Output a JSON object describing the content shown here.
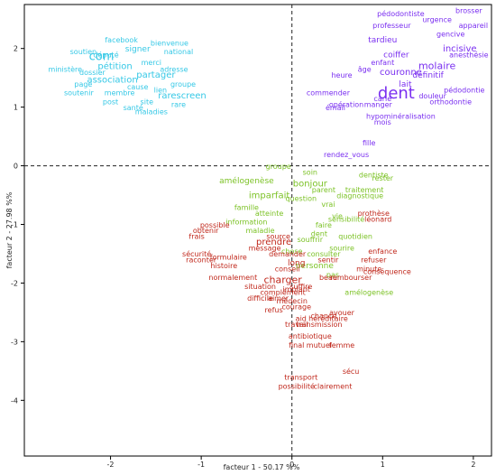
{
  "chart_data": {
    "type": "scatter",
    "title": "",
    "xlabel": "facteur 1 - 50.17 %%",
    "ylabel": "facteur 2 - 27.98 %%",
    "xlim": [
      -2.95,
      2.2
    ],
    "ylim": [
      -4.95,
      2.75
    ],
    "xticks": [
      -2,
      -1,
      0,
      1,
      2
    ],
    "yticks": [
      2,
      1,
      0,
      -1,
      -2,
      -3,
      -4
    ],
    "grid": false,
    "reference_lines": [
      0,
      0
    ],
    "colors": {
      "cyan": "#35c8e6",
      "purple": "#7a2ff0",
      "green": "#7cc226",
      "red": "#c0281c"
    },
    "clusters": [
      {
        "color": "cyan",
        "words": [
          {
            "t": "com",
            "x": -2.1,
            "y": 1.8,
            "s": 13
          },
          {
            "t": "pétition",
            "x": -1.95,
            "y": 1.65,
            "s": 10
          },
          {
            "t": "association",
            "x": -1.98,
            "y": 1.42,
            "s": 10
          },
          {
            "t": "partager",
            "x": -1.5,
            "y": 1.5,
            "s": 10
          },
          {
            "t": "rarescreen",
            "x": -1.21,
            "y": 1.15,
            "s": 10
          },
          {
            "t": "signer",
            "x": -1.7,
            "y": 1.95,
            "s": 9
          },
          {
            "t": "facebook",
            "x": -1.88,
            "y": 2.1,
            "s": 8
          },
          {
            "t": "national",
            "x": -1.25,
            "y": 1.9,
            "s": 8
          },
          {
            "t": "merci",
            "x": -1.55,
            "y": 1.72,
            "s": 8
          },
          {
            "t": "dossier",
            "x": -2.2,
            "y": 1.55,
            "s": 8
          },
          {
            "t": "député",
            "x": -2.05,
            "y": 1.85,
            "s": 8
          },
          {
            "t": "cause",
            "x": -1.7,
            "y": 1.3,
            "s": 8
          },
          {
            "t": "bienvenue",
            "x": -1.35,
            "y": 2.05,
            "s": 8
          },
          {
            "t": "membre",
            "x": -1.9,
            "y": 1.2,
            "s": 8
          },
          {
            "t": "soutien",
            "x": -2.3,
            "y": 1.9,
            "s": 8
          },
          {
            "t": "ministère",
            "x": -2.5,
            "y": 1.6,
            "s": 8
          },
          {
            "t": "lien",
            "x": -1.45,
            "y": 1.25,
            "s": 8
          },
          {
            "t": "page",
            "x": -2.3,
            "y": 1.35,
            "s": 8
          },
          {
            "t": "site",
            "x": -1.6,
            "y": 1.05,
            "s": 8
          },
          {
            "t": "post",
            "x": -2.0,
            "y": 1.05,
            "s": 8
          },
          {
            "t": "groupe",
            "x": -1.2,
            "y": 1.35,
            "s": 8
          },
          {
            "t": "soutenir",
            "x": -2.35,
            "y": 1.2,
            "s": 8
          },
          {
            "t": "adresse",
            "x": -1.3,
            "y": 1.6,
            "s": 8
          },
          {
            "t": "santé",
            "x": -1.75,
            "y": 0.95,
            "s": 8
          },
          {
            "t": "rare",
            "x": -1.25,
            "y": 1.0,
            "s": 8
          },
          {
            "t": "maladies",
            "x": -1.55,
            "y": 0.88,
            "s": 8
          }
        ]
      },
      {
        "color": "purple",
        "words": [
          {
            "t": "dent",
            "x": 1.15,
            "y": 1.15,
            "s": 18
          },
          {
            "t": "molaire",
            "x": 1.6,
            "y": 1.65,
            "s": 11
          },
          {
            "t": "incisive",
            "x": 1.85,
            "y": 1.95,
            "s": 10
          },
          {
            "t": "couronne",
            "x": 1.2,
            "y": 1.55,
            "s": 10
          },
          {
            "t": "coiffer",
            "x": 1.15,
            "y": 1.85,
            "s": 9
          },
          {
            "t": "définitif",
            "x": 1.5,
            "y": 1.5,
            "s": 9
          },
          {
            "t": "lait",
            "x": 1.25,
            "y": 1.35,
            "s": 9
          },
          {
            "t": "tardieu",
            "x": 1.0,
            "y": 2.1,
            "s": 9
          },
          {
            "t": "pédodontie",
            "x": 1.9,
            "y": 1.25,
            "s": 8
          },
          {
            "t": "orthodontie",
            "x": 1.75,
            "y": 1.05,
            "s": 8
          },
          {
            "t": "carie",
            "x": 1.0,
            "y": 1.1,
            "s": 8
          },
          {
            "t": "émail",
            "x": 0.48,
            "y": 0.95,
            "s": 8
          },
          {
            "t": "opération",
            "x": 0.6,
            "y": 1.0,
            "s": 8
          },
          {
            "t": "rendez_vous",
            "x": 0.6,
            "y": 0.15,
            "s": 8
          },
          {
            "t": "hypominéralisation",
            "x": 1.2,
            "y": 0.8,
            "s": 8
          },
          {
            "t": "enfant",
            "x": 1.0,
            "y": 1.72,
            "s": 8
          },
          {
            "t": "anesthésie",
            "x": 1.95,
            "y": 1.85,
            "s": 8
          },
          {
            "t": "gencive",
            "x": 1.75,
            "y": 2.2,
            "s": 8
          },
          {
            "t": "appareil",
            "x": 2.0,
            "y": 2.35,
            "s": 8
          },
          {
            "t": "professeur",
            "x": 1.1,
            "y": 2.35,
            "s": 8
          },
          {
            "t": "urgence",
            "x": 1.6,
            "y": 2.45,
            "s": 8
          },
          {
            "t": "mois",
            "x": 1.0,
            "y": 0.7,
            "s": 8
          },
          {
            "t": "fille",
            "x": 0.85,
            "y": 0.35,
            "s": 8
          },
          {
            "t": "pédodontiste",
            "x": 1.2,
            "y": 2.55,
            "s": 8
          },
          {
            "t": "brosser",
            "x": 1.95,
            "y": 2.6,
            "s": 8
          },
          {
            "t": "commender",
            "x": 0.4,
            "y": 1.2,
            "s": 8
          },
          {
            "t": "heure",
            "x": 0.55,
            "y": 1.5,
            "s": 8
          },
          {
            "t": "manger",
            "x": 0.95,
            "y": 1.0,
            "s": 8
          },
          {
            "t": "douleur",
            "x": 1.55,
            "y": 1.15,
            "s": 8
          },
          {
            "t": "âge",
            "x": 0.8,
            "y": 1.6,
            "s": 8
          }
        ]
      },
      {
        "color": "green",
        "words": [
          {
            "t": "bonjour",
            "x": 0.2,
            "y": -0.35,
            "s": 10
          },
          {
            "t": "imparfait",
            "x": -0.25,
            "y": -0.55,
            "s": 10
          },
          {
            "t": "amélogenèse",
            "x": -0.5,
            "y": -0.3,
            "s": 9
          },
          {
            "t": "atteinte",
            "x": -0.25,
            "y": -0.85,
            "s": 8
          },
          {
            "t": "maladie",
            "x": -0.35,
            "y": -1.15,
            "s": 8
          },
          {
            "t": "personne",
            "x": 0.25,
            "y": -1.75,
            "s": 9
          },
          {
            "t": "consulter",
            "x": 0.35,
            "y": -1.55,
            "s": 8
          },
          {
            "t": "dentiste",
            "x": 0.9,
            "y": -0.2,
            "s": 8
          },
          {
            "t": "diagnostique",
            "x": 0.75,
            "y": -0.55,
            "s": 8
          },
          {
            "t": "vrai",
            "x": 0.4,
            "y": -0.7,
            "s": 8
          },
          {
            "t": "vie",
            "x": 0.5,
            "y": -0.9,
            "s": 8
          },
          {
            "t": "famille",
            "x": -0.5,
            "y": -0.75,
            "s": 8
          },
          {
            "t": "groupe",
            "x": -0.15,
            "y": -0.05,
            "s": 8
          },
          {
            "t": "soin",
            "x": 0.2,
            "y": -0.15,
            "s": 8
          },
          {
            "t": "traitement",
            "x": 0.8,
            "y": -0.45,
            "s": 8
          },
          {
            "t": "faire",
            "x": 0.35,
            "y": -1.05,
            "s": 8
          },
          {
            "t": "quotidien",
            "x": 0.7,
            "y": -1.25,
            "s": 8
          },
          {
            "t": "souffrir",
            "x": 0.2,
            "y": -1.3,
            "s": 8
          },
          {
            "t": "sourire",
            "x": 0.55,
            "y": -1.45,
            "s": 8
          },
          {
            "t": "rester",
            "x": 1.0,
            "y": -0.25,
            "s": 8
          },
          {
            "t": "parent",
            "x": 0.35,
            "y": -0.45,
            "s": 8
          },
          {
            "t": "sensibilité",
            "x": 0.6,
            "y": -0.95,
            "s": 8
          },
          {
            "t": "dent",
            "x": 0.3,
            "y": -1.2,
            "s": 8
          },
          {
            "t": "question",
            "x": 0.1,
            "y": -0.6,
            "s": 8
          },
          {
            "t": "amélogenèse",
            "x": 0.85,
            "y": -2.2,
            "s": 8
          },
          {
            "t": "chose",
            "x": 0.0,
            "y": -1.5,
            "s": 8
          },
          {
            "t": "pas",
            "x": 0.45,
            "y": -1.9,
            "s": 8
          },
          {
            "t": "information",
            "x": -0.5,
            "y": -1.0,
            "s": 8
          }
        ]
      },
      {
        "color": "red",
        "words": [
          {
            "t": "charger",
            "x": -0.1,
            "y": -2.0,
            "s": 11
          },
          {
            "t": "prendre",
            "x": -0.2,
            "y": -1.35,
            "s": 10
          },
          {
            "t": "long",
            "x": 0.05,
            "y": -1.7,
            "s": 9
          },
          {
            "t": "source",
            "x": -0.15,
            "y": -1.25,
            "s": 8
          },
          {
            "t": "chance",
            "x": 0.35,
            "y": -2.6,
            "s": 8
          },
          {
            "t": "courage",
            "x": 0.05,
            "y": -2.45,
            "s": 8
          },
          {
            "t": "transport",
            "x": 0.1,
            "y": -3.65,
            "s": 8
          },
          {
            "t": "possibilité",
            "x": 0.05,
            "y": -3.8,
            "s": 8
          },
          {
            "t": "clairement",
            "x": 0.45,
            "y": -3.8,
            "s": 8
          },
          {
            "t": "final",
            "x": 0.05,
            "y": -3.1,
            "s": 8
          },
          {
            "t": "mutuel",
            "x": 0.3,
            "y": -3.1,
            "s": 8
          },
          {
            "t": "femme",
            "x": 0.55,
            "y": -3.1,
            "s": 8
          },
          {
            "t": "antibiotique",
            "x": 0.2,
            "y": -2.95,
            "s": 8
          },
          {
            "t": "transmission",
            "x": 0.3,
            "y": -2.75,
            "s": 8
          },
          {
            "t": "héréditaire",
            "x": 0.4,
            "y": -2.65,
            "s": 8
          },
          {
            "t": "sécu",
            "x": 0.65,
            "y": -3.55,
            "s": 8
          },
          {
            "t": "aid",
            "x": 0.1,
            "y": -2.65,
            "s": 8
          },
          {
            "t": "travail",
            "x": 0.05,
            "y": -2.75,
            "s": 8
          },
          {
            "t": "médecin",
            "x": 0.0,
            "y": -2.35,
            "s": 8
          },
          {
            "t": "difficile",
            "x": -0.35,
            "y": -2.3,
            "s": 8
          },
          {
            "t": "refus",
            "x": -0.2,
            "y": -2.5,
            "s": 8
          },
          {
            "t": "situation",
            "x": -0.35,
            "y": -2.1,
            "s": 8
          },
          {
            "t": "normalement",
            "x": -0.65,
            "y": -1.95,
            "s": 8
          },
          {
            "t": "histoire",
            "x": -0.75,
            "y": -1.75,
            "s": 8
          },
          {
            "t": "sécurité",
            "x": -1.05,
            "y": -1.55,
            "s": 8
          },
          {
            "t": "raconter",
            "x": -1.0,
            "y": -1.65,
            "s": 8
          },
          {
            "t": "formulaire",
            "x": -0.7,
            "y": -1.6,
            "s": 8
          },
          {
            "t": "possible",
            "x": -0.85,
            "y": -1.05,
            "s": 8
          },
          {
            "t": "obtenir",
            "x": -0.95,
            "y": -1.15,
            "s": 8
          },
          {
            "t": "frais",
            "x": -1.05,
            "y": -1.25,
            "s": 8
          },
          {
            "t": "message",
            "x": -0.3,
            "y": -1.45,
            "s": 8
          },
          {
            "t": "demander",
            "x": -0.05,
            "y": -1.55,
            "s": 8
          },
          {
            "t": "conseil",
            "x": -0.05,
            "y": -1.8,
            "s": 8
          },
          {
            "t": "rembourser",
            "x": 0.65,
            "y": -1.95,
            "s": 8
          },
          {
            "t": "minute",
            "x": 0.85,
            "y": -1.8,
            "s": 8
          },
          {
            "t": "conséquence",
            "x": 1.05,
            "y": -1.85,
            "s": 8
          },
          {
            "t": "enfance",
            "x": 1.0,
            "y": -1.5,
            "s": 8
          },
          {
            "t": "refuser",
            "x": 0.9,
            "y": -1.65,
            "s": 8
          },
          {
            "t": "prothèse",
            "x": 0.9,
            "y": -0.85,
            "s": 8
          },
          {
            "t": "léonard",
            "x": 0.95,
            "y": -0.95,
            "s": 8
          },
          {
            "t": "sentir",
            "x": 0.4,
            "y": -1.65,
            "s": 8
          },
          {
            "t": "beau",
            "x": 0.4,
            "y": -1.95,
            "s": 8
          },
          {
            "t": "avouer",
            "x": 0.55,
            "y": -2.55,
            "s": 8
          },
          {
            "t": "complément",
            "x": -0.1,
            "y": -2.2,
            "s": 8
          },
          {
            "t": "aimer",
            "x": -0.15,
            "y": -2.3,
            "s": 8
          },
          {
            "t": "suffire",
            "x": 0.1,
            "y": -2.1,
            "s": 8
          },
          {
            "t": "implant",
            "x": 0.05,
            "y": -2.15,
            "s": 8
          }
        ]
      }
    ]
  }
}
